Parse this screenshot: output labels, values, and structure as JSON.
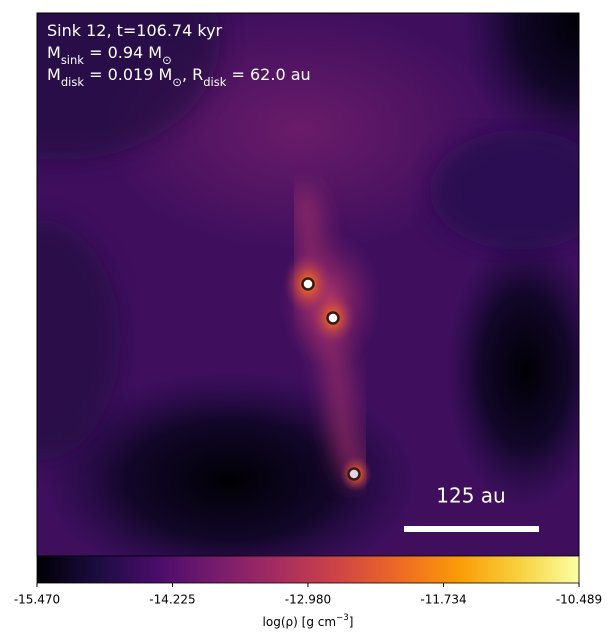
{
  "chart_data": {
    "type": "image",
    "colormap": "inferno",
    "clim": [
      -15.47,
      -10.489
    ],
    "annotations": [
      [
        {
          "text": "Sink 12, t=106.74 kyr"
        }
      ],
      [
        {
          "text": "M"
        },
        {
          "sub": "sink"
        },
        {
          "text": " = 0.94 M"
        },
        {
          "sub": "⊙"
        }
      ],
      [
        {
          "text": "M"
        },
        {
          "sub": "disk"
        },
        {
          "text": " = 0.019 M"
        },
        {
          "sub": "⊙"
        },
        {
          "text": ", R"
        },
        {
          "sub": "disk"
        },
        {
          "text": " = 62.0 au"
        }
      ]
    ],
    "scale_bar": "125 au",
    "colorbar_label": [
      {
        "text": "log(ρ) [g cm"
      },
      {
        "sup": "−3"
      },
      {
        "text": "]"
      }
    ],
    "colorbar_ticks": [
      {
        "value": -15.47,
        "label": "-15.470"
      },
      -14.225,
      {
        "value": -12.98,
        "label": "-12.980"
      },
      -11.734,
      -10.489
    ]
  }
}
